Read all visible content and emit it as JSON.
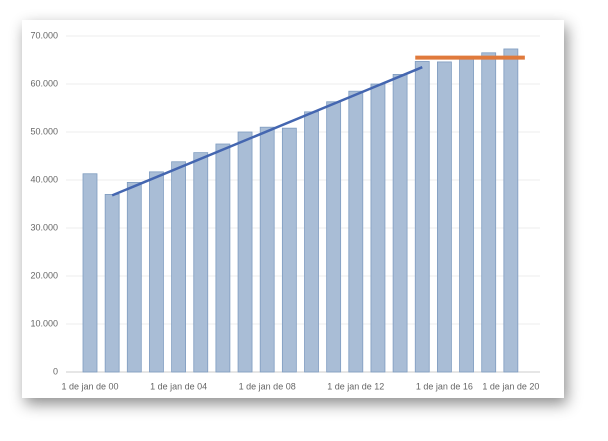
{
  "chart_data": {
    "type": "bar",
    "categories": [
      "1 de jan de 00",
      null,
      null,
      null,
      "1 de jan de 04",
      null,
      null,
      null,
      "1 de jan de 08",
      null,
      null,
      null,
      "1 de jan de 12",
      null,
      null,
      null,
      "1 de jan de 16",
      null,
      null,
      "1 de jan de 20"
    ],
    "values": [
      41300,
      37000,
      39500,
      41700,
      43800,
      45700,
      47500,
      50000,
      51000,
      50800,
      54200,
      56300,
      58500,
      60000,
      62000,
      64700,
      64600,
      65500,
      66500,
      67300
    ],
    "color": "#a9bdd6",
    "ylim": [
      0,
      70000
    ],
    "yticks": [
      0,
      {
        "value": 10000,
        "label": "10.000"
      },
      {
        "value": 20000,
        "label": "20.000"
      },
      {
        "value": 30000,
        "label": "30.000"
      },
      {
        "value": 40000,
        "label": "40.000"
      },
      {
        "value": 50000,
        "label": "50.000"
      },
      {
        "value": 60000,
        "label": "60.000"
      },
      {
        "value": 70000,
        "label": "70.000"
      }
    ],
    "grid": true,
    "trend_lines": [
      {
        "color": "#4466b0",
        "x": [
          1,
          15
        ],
        "y": [
          36800,
          63500
        ]
      },
      {
        "color": "#e07a3c",
        "x": [
          15,
          19
        ],
        "y": [
          65500,
          65500
        ]
      }
    ]
  }
}
